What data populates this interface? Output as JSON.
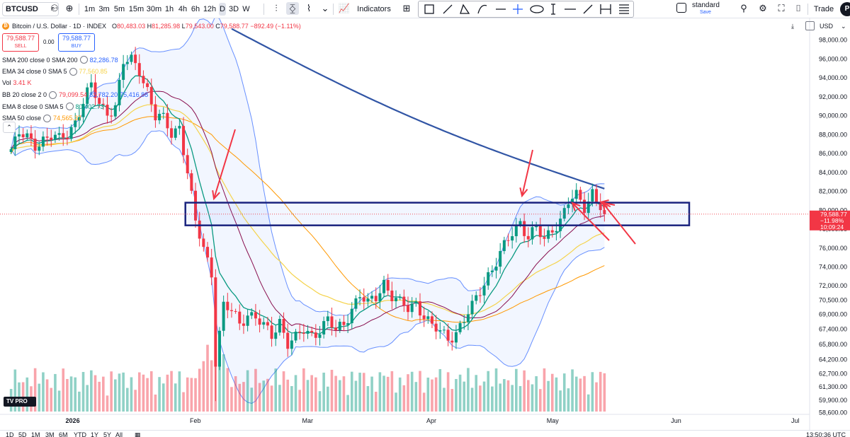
{
  "toolbar": {
    "symbol": "BTCUSD",
    "intervals": [
      "1m",
      "3m",
      "5m",
      "15m",
      "30m",
      "1h",
      "4h",
      "6h",
      "12h",
      "D",
      "3D",
      "W"
    ],
    "active_interval": "D",
    "indicators_label": "Indicators",
    "layout_name": "standard",
    "save_label": "Save",
    "trade_label": "Trade",
    "avatar_letter": "P"
  },
  "legend": {
    "title": "Bitcoin / U.S. Dollar · 1D · INDEX",
    "ohlc": {
      "o": "80,483.03",
      "h": "81,285.98",
      "l": "79,543.00",
      "c": "79,588.77",
      "chg": "−892.49 (−1.11%)"
    },
    "sell_price": "79,588.77",
    "sell_label": "SELL",
    "buy_price": "79,588.77",
    "buy_label": "BUY",
    "spread": "0.00",
    "indicators": [
      {
        "name": "SMA 200 close 0 SMA 200",
        "values": [
          "82,286.78"
        ],
        "colors": [
          "#2962ff"
        ]
      },
      {
        "name": "EMA 34 close 0 SMA 5",
        "values": [
          "77,560.85"
        ],
        "colors": [
          "#f5d34c"
        ]
      },
      {
        "name": "Vol",
        "values": [
          "3.41 K"
        ],
        "colors": [
          "#f23645"
        ]
      },
      {
        "name": "BB 20 close 2 0",
        "values": [
          "79,099.54",
          "82,782.20",
          "75,416.88"
        ],
        "colors": [
          "#f23645",
          "#2962ff",
          "#2962ff"
        ]
      },
      {
        "name": "EMA 8 close 0 SMA 5",
        "values": [
          "80,402.73"
        ],
        "colors": [
          "#089981"
        ]
      },
      {
        "name": "SMA 50 close",
        "values": [
          "74,565.37"
        ],
        "colors": [
          "#ff9800"
        ]
      }
    ]
  },
  "price_axis": {
    "currency": "USD",
    "labels": [
      "98,000.00",
      "96,000.00",
      "94,000.00",
      "92,000.00",
      "90,000.00",
      "88,000.00",
      "86,000.00",
      "84,000.00",
      "82,000.00",
      "80,000.00",
      "78,000.00",
      "76,000.00",
      "74,000.00",
      "72,000.00",
      "70,500.00",
      "69,000.00",
      "67,400.00",
      "65,800.00",
      "64,200.00",
      "62,700.00",
      "61,300.00",
      "59,900.00",
      "58,600.00"
    ],
    "last_price": "79,588.77",
    "last_change": "−11.98%",
    "countdown": "10:09:24"
  },
  "time_axis": {
    "labels": [
      "2026",
      "Feb",
      "Mar",
      "Apr",
      "May",
      "Jun",
      "Jul"
    ]
  },
  "bottom": {
    "ranges": [
      "1D",
      "5D",
      "1M",
      "3M",
      "6M",
      "YTD",
      "1Y",
      "5Y",
      "All"
    ],
    "clock": "13:50:36 UTC"
  },
  "logo_text": "TV PRO",
  "chart_data": {
    "type": "candlestick",
    "title": "Bitcoin / U.S. Dollar · 1D · INDEX",
    "y_range": [
      57500,
      100000
    ],
    "x_start": "2025-12-16",
    "x_end": "2026-07-04",
    "up_color": "#089981",
    "down_color": "#f23645",
    "closes": [
      [
        "2025-12-17",
        86500
      ],
      [
        "2025-12-19",
        88000
      ],
      [
        "2025-12-21",
        87500
      ],
      [
        "2025-12-23",
        87000
      ],
      [
        "2025-12-25",
        87600
      ],
      [
        "2025-12-27",
        87800
      ],
      [
        "2025-12-29",
        87300
      ],
      [
        "2025-12-31",
        88100
      ],
      [
        "2026-01-02",
        89500
      ],
      [
        "2026-01-04",
        91500
      ],
      [
        "2026-01-06",
        93000
      ],
      [
        "2026-01-08",
        91200
      ],
      [
        "2026-01-10",
        90500
      ],
      [
        "2026-01-12",
        91000
      ],
      [
        "2026-01-14",
        95500
      ],
      [
        "2026-01-16",
        95800
      ],
      [
        "2026-01-18",
        95000
      ],
      [
        "2026-01-20",
        92800
      ],
      [
        "2026-01-22",
        89800
      ],
      [
        "2026-01-24",
        89500
      ],
      [
        "2026-01-26",
        88200
      ],
      [
        "2026-01-28",
        89000
      ],
      [
        "2026-01-30",
        84000
      ],
      [
        "2026-02-01",
        78500
      ],
      [
        "2026-02-03",
        76000
      ],
      [
        "2026-02-05",
        73500
      ],
      [
        "2026-02-06",
        64200
      ],
      [
        "2026-02-08",
        69800
      ],
      [
        "2026-02-10",
        69200
      ],
      [
        "2026-02-12",
        68000
      ],
      [
        "2026-02-14",
        69200
      ],
      [
        "2026-02-16",
        68700
      ],
      [
        "2026-02-18",
        67500
      ],
      [
        "2026-02-20",
        66700
      ],
      [
        "2026-02-22",
        68400
      ],
      [
        "2026-02-24",
        66000
      ],
      [
        "2026-02-26",
        66300
      ],
      [
        "2026-02-28",
        67200
      ],
      [
        "2026-03-02",
        66900
      ],
      [
        "2026-03-04",
        67500
      ],
      [
        "2026-03-06",
        68300
      ],
      [
        "2026-03-08",
        67100
      ],
      [
        "2026-03-10",
        68000
      ],
      [
        "2026-03-12",
        69800
      ],
      [
        "2026-03-14",
        71000
      ],
      [
        "2026-03-16",
        69900
      ],
      [
        "2026-03-18",
        70800
      ],
      [
        "2026-03-20",
        72500
      ],
      [
        "2026-03-22",
        71000
      ],
      [
        "2026-03-24",
        70000
      ],
      [
        "2026-03-26",
        69500
      ],
      [
        "2026-03-28",
        70300
      ],
      [
        "2026-03-30",
        69000
      ],
      [
        "2026-04-01",
        67600
      ],
      [
        "2026-04-03",
        67000
      ],
      [
        "2026-04-05",
        66500
      ],
      [
        "2026-04-07",
        67200
      ],
      [
        "2026-04-09",
        68400
      ],
      [
        "2026-04-11",
        69600
      ],
      [
        "2026-04-13",
        71500
      ],
      [
        "2026-04-15",
        73300
      ],
      [
        "2026-04-17",
        74600
      ],
      [
        "2026-04-19",
        76000
      ],
      [
        "2026-04-21",
        77500
      ],
      [
        "2026-04-23",
        78900
      ],
      [
        "2026-04-25",
        77300
      ],
      [
        "2026-04-27",
        78000
      ],
      [
        "2026-04-29",
        76600
      ],
      [
        "2026-05-01",
        78100
      ],
      [
        "2026-05-03",
        79100
      ],
      [
        "2026-05-05",
        80900
      ],
      [
        "2026-05-07",
        81300
      ],
      [
        "2026-05-09",
        80300
      ],
      [
        "2026-05-11",
        82100
      ],
      [
        "2026-05-13",
        80500
      ],
      [
        "2026-05-14",
        79588.77
      ]
    ],
    "annotations": {
      "zone": [
        78400,
        80800
      ],
      "arrows": 5,
      "color": "#f23645",
      "zone_color": "#1a237e"
    },
    "indicator_last": {
      "SMA200": 82286.78,
      "EMA34": 77560.85,
      "EMA8": 80402.73,
      "SMA50": 74565.37,
      "BB_basis": 79099.54,
      "BB_upper": 82782.2,
      "BB_lower": 75416.88
    }
  }
}
